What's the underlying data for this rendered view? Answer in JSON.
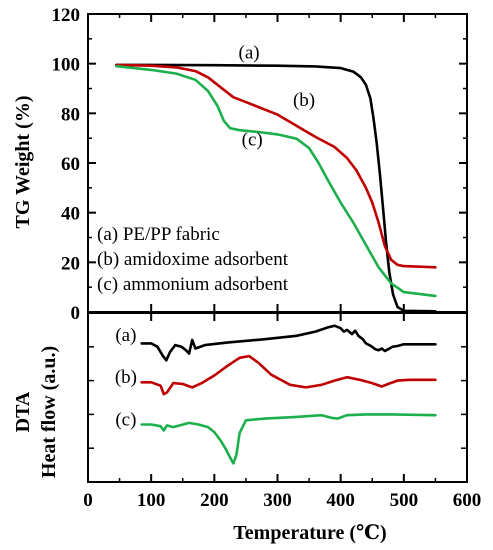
{
  "chart_data": [
    {
      "type": "line",
      "panel": "top",
      "ylabel": "TG Weight (%)",
      "xlabel": "Temperature (℃)",
      "xlim": [
        0,
        600
      ],
      "ylim": [
        0,
        120
      ],
      "x_ticks": [
        0,
        100,
        200,
        300,
        400,
        500,
        600
      ],
      "y_ticks": [
        0,
        20,
        40,
        60,
        80,
        100,
        120
      ],
      "grid": false,
      "legend": {
        "placement": "lower-left",
        "entries": [
          "(a)  PE/PP fabric",
          "(b)  amidoxime adsorbent",
          "(c)  ammonium adsorbent"
        ]
      },
      "curve_labels": [
        {
          "text": "(a)",
          "x": 255,
          "y": 102
        },
        {
          "text": "(b)",
          "x": 342,
          "y": 83
        },
        {
          "text": "(c)",
          "x": 260,
          "y": 67
        }
      ],
      "series": [
        {
          "key": "a",
          "color": "#000000",
          "x": [
            45,
            100,
            200,
            300,
            360,
            400,
            420,
            432,
            440,
            447,
            452,
            457,
            462,
            467,
            472,
            477,
            483,
            490,
            500,
            550
          ],
          "y": [
            99.5,
            99.5,
            99.4,
            99.2,
            98.9,
            98.2,
            96.8,
            94.5,
            91.5,
            86,
            78,
            68,
            56,
            42,
            28,
            16,
            7,
            2,
            0.5,
            0.3
          ]
        },
        {
          "key": "b",
          "color": "#c00000",
          "x": [
            45,
            100,
            140,
            170,
            190,
            210,
            230,
            260,
            300,
            330,
            360,
            390,
            410,
            425,
            440,
            450,
            460,
            470,
            480,
            490,
            500,
            550
          ],
          "y": [
            99.5,
            99.2,
            98.5,
            97,
            94.5,
            90.5,
            86.5,
            83.5,
            79.5,
            75,
            70.5,
            66.5,
            62,
            57,
            50,
            44,
            36,
            26.5,
            21,
            19,
            18.5,
            18
          ]
        },
        {
          "key": "c",
          "color": "#1cb04c",
          "x": [
            45,
            100,
            140,
            170,
            190,
            205,
            215,
            225,
            240,
            270,
            300,
            330,
            350,
            365,
            380,
            400,
            420,
            440,
            460,
            480,
            500,
            550
          ],
          "y": [
            99,
            97.5,
            96,
            93.5,
            89,
            83,
            77,
            74,
            73.2,
            72.5,
            71.5,
            69.8,
            66,
            60,
            53,
            44,
            36,
            27,
            18,
            11.5,
            8,
            6.5
          ]
        }
      ]
    },
    {
      "type": "line",
      "panel": "bottom",
      "ylabel": "DTA\nHeat flow (a.u.)",
      "xlabel": "Temperature (℃)",
      "xlim": [
        0,
        600
      ],
      "ylim": [
        0,
        10
      ],
      "y_ticks_labeled": false,
      "grid": false,
      "curve_labels": [
        {
          "text": "(a)",
          "x": 60,
          "y": 8.7
        },
        {
          "text": "(b)",
          "x": 60,
          "y": 6.2
        },
        {
          "text": "(c)",
          "x": 60,
          "y": 3.7
        }
      ],
      "series": [
        {
          "key": "a",
          "color": "#000000",
          "x": [
            85,
            100,
            110,
            118,
            124,
            130,
            138,
            148,
            155,
            160,
            165,
            170,
            185,
            220,
            280,
            330,
            360,
            380,
            390,
            400,
            405,
            410,
            418,
            423,
            428,
            435,
            440,
            448,
            455,
            460,
            465,
            470,
            475,
            482,
            490,
            500,
            520,
            550
          ],
          "y": [
            8.2,
            8.2,
            8.0,
            7.5,
            7.2,
            7.7,
            8.1,
            8.0,
            7.8,
            7.6,
            8.4,
            7.9,
            8.1,
            8.25,
            8.45,
            8.65,
            8.9,
            9.15,
            9.25,
            9.1,
            8.9,
            9.0,
            8.75,
            8.95,
            8.65,
            8.45,
            8.2,
            8.05,
            7.85,
            7.8,
            7.9,
            7.75,
            7.85,
            8.0,
            8.05,
            8.15,
            8.15,
            8.15
          ]
        },
        {
          "key": "b",
          "color": "#c00000",
          "x": [
            85,
            100,
            115,
            120,
            125,
            135,
            150,
            165,
            180,
            200,
            220,
            240,
            255,
            270,
            290,
            320,
            345,
            370,
            390,
            410,
            430,
            450,
            465,
            475,
            490,
            510,
            550
          ],
          "y": [
            5.9,
            5.9,
            5.7,
            5.2,
            5.3,
            5.85,
            5.8,
            5.6,
            5.85,
            6.3,
            6.85,
            7.35,
            7.45,
            7.05,
            6.35,
            5.75,
            5.6,
            5.75,
            6.0,
            6.2,
            6.05,
            5.85,
            5.65,
            5.8,
            6.0,
            6.05,
            6.05
          ]
        },
        {
          "key": "c",
          "color": "#1cb04c",
          "x": [
            85,
            100,
            115,
            120,
            125,
            135,
            160,
            175,
            190,
            200,
            210,
            218,
            225,
            230,
            235,
            240,
            250,
            280,
            330,
            370,
            385,
            395,
            410,
            440,
            480,
            550
          ],
          "y": [
            3.4,
            3.4,
            3.3,
            3.05,
            3.35,
            3.25,
            3.5,
            3.4,
            3.25,
            2.95,
            2.45,
            1.95,
            1.45,
            1.1,
            1.6,
            2.9,
            3.65,
            3.75,
            3.85,
            3.95,
            3.8,
            3.75,
            3.95,
            4.0,
            4.0,
            3.95
          ]
        }
      ]
    }
  ]
}
